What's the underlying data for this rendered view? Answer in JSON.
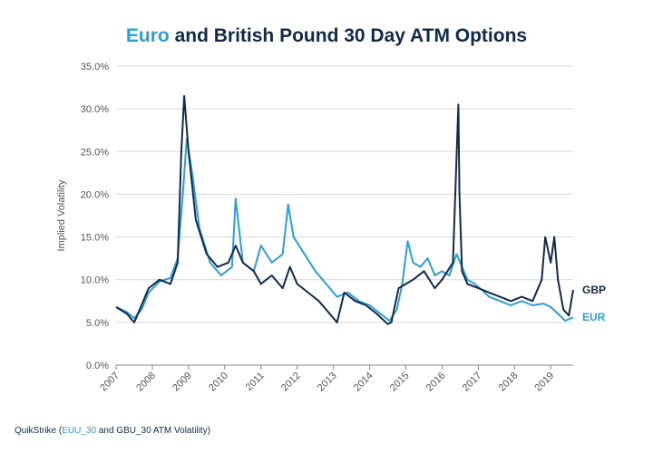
{
  "title": {
    "accent": "Euro",
    "rest": " and British Pound 30 Day ATM Options"
  },
  "source": {
    "prefix": "QuikStrike (",
    "accent": "EUU_30",
    "suffix": " and GBU_30 ATM Volatility)"
  },
  "colors": {
    "gbp": "#13294b",
    "eur": "#2a9fd8",
    "grid": "#d9d9d9",
    "axis": "#888888",
    "text": "#555555"
  },
  "chart_data": {
    "type": "line",
    "title": "Euro and British Pound 30 Day ATM Options",
    "xlabel": "",
    "ylabel": "Implied Volatility",
    "xlim": [
      2007,
      2019.62
    ],
    "ylim": [
      0,
      35
    ],
    "yticks": [
      0,
      5,
      10,
      15,
      20,
      25,
      30,
      35
    ],
    "ytick_labels": [
      "0.0%",
      "5.0%",
      "10.0%",
      "15.0%",
      "20.0%",
      "25.0%",
      "30.0%",
      "35.0%"
    ],
    "xticks": [
      2007,
      2008,
      2009,
      2010,
      2011,
      2012,
      2013,
      2014,
      2015,
      2016,
      2017,
      2018,
      2019
    ],
    "xtick_labels": [
      "2007",
      "2008",
      "2009",
      "2010",
      "2011",
      "2012",
      "2013",
      "2014",
      "2015",
      "2016",
      "2017",
      "2018",
      "2019"
    ],
    "grid": "horizontal",
    "series": [
      {
        "name": "EUR",
        "label": "EUR",
        "x": [
          2007.0,
          2007.3,
          2007.5,
          2007.7,
          2007.9,
          2008.2,
          2008.5,
          2008.7,
          2008.85,
          2008.95,
          2009.1,
          2009.3,
          2009.6,
          2009.9,
          2010.2,
          2010.3,
          2010.5,
          2010.8,
          2011.0,
          2011.3,
          2011.6,
          2011.75,
          2011.9,
          2012.2,
          2012.5,
          2012.8,
          2013.1,
          2013.4,
          2013.7,
          2014.0,
          2014.3,
          2014.55,
          2014.75,
          2014.9,
          2015.05,
          2015.2,
          2015.4,
          2015.6,
          2015.8,
          2016.0,
          2016.2,
          2016.4,
          2016.5,
          2016.7,
          2016.9,
          2017.1,
          2017.3,
          2017.6,
          2017.9,
          2018.2,
          2018.5,
          2018.8,
          2019.0,
          2019.2,
          2019.4,
          2019.62
        ],
        "y": [
          6.8,
          6.2,
          5.5,
          6.5,
          8.5,
          9.8,
          10.2,
          12.5,
          20.5,
          26.5,
          22.5,
          16.0,
          12.0,
          10.5,
          11.5,
          19.5,
          12.0,
          11.0,
          14.0,
          12.0,
          13.0,
          18.8,
          15.0,
          13.0,
          11.0,
          9.5,
          8.0,
          8.5,
          7.5,
          7.0,
          6.0,
          5.2,
          6.5,
          9.5,
          14.5,
          12.0,
          11.5,
          12.5,
          10.5,
          11.0,
          10.5,
          13.0,
          12.0,
          10.0,
          9.5,
          8.8,
          8.0,
          7.5,
          7.0,
          7.5,
          7.0,
          7.2,
          6.8,
          6.0,
          5.2,
          5.6
        ]
      },
      {
        "name": "GBP",
        "label": "GBP",
        "x": [
          2007.0,
          2007.3,
          2007.5,
          2007.7,
          2007.9,
          2008.2,
          2008.5,
          2008.7,
          2008.8,
          2008.88,
          2009.0,
          2009.2,
          2009.5,
          2009.8,
          2010.1,
          2010.3,
          2010.5,
          2010.8,
          2011.0,
          2011.3,
          2011.6,
          2011.8,
          2012.0,
          2012.3,
          2012.6,
          2012.9,
          2013.1,
          2013.3,
          2013.6,
          2013.9,
          2014.2,
          2014.5,
          2014.6,
          2014.8,
          2015.0,
          2015.2,
          2015.5,
          2015.8,
          2016.0,
          2016.3,
          2016.45,
          2016.48,
          2016.55,
          2016.7,
          2017.0,
          2017.3,
          2017.6,
          2017.9,
          2018.2,
          2018.5,
          2018.75,
          2018.85,
          2019.0,
          2019.1,
          2019.2,
          2019.35,
          2019.5,
          2019.62
        ],
        "y": [
          6.8,
          6.0,
          5.0,
          7.0,
          9.0,
          10.0,
          9.5,
          12.0,
          25.0,
          31.5,
          25.0,
          17.0,
          13.0,
          11.5,
          12.0,
          14.0,
          12.0,
          11.0,
          9.5,
          10.5,
          9.0,
          11.5,
          9.5,
          8.5,
          7.5,
          6.0,
          5.0,
          8.5,
          7.5,
          7.0,
          6.0,
          4.8,
          5.0,
          9.0,
          9.5,
          10.0,
          11.0,
          9.0,
          10.0,
          12.0,
          30.5,
          20.0,
          11.0,
          9.5,
          9.0,
          8.5,
          8.0,
          7.5,
          8.0,
          7.5,
          10.0,
          15.0,
          12.0,
          15.0,
          10.0,
          6.5,
          5.8,
          8.8
        ]
      }
    ]
  }
}
